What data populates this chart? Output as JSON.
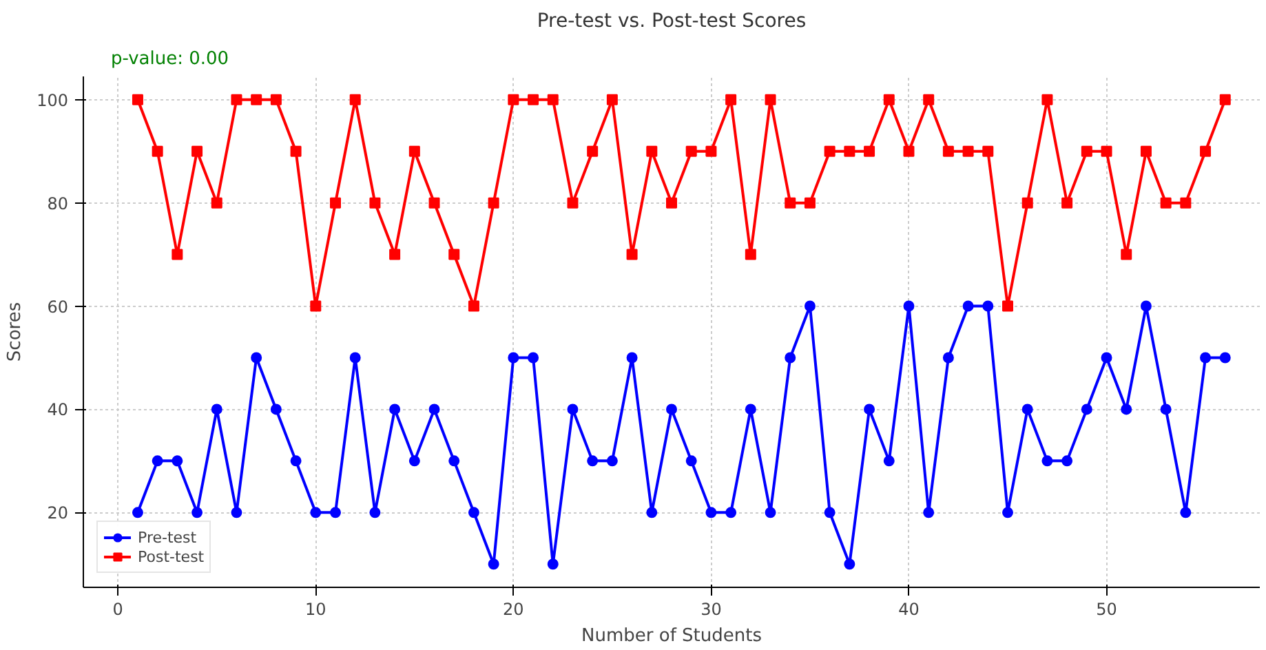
{
  "chart_data": {
    "type": "line",
    "title": "Pre-test vs. Post-test Scores",
    "xlabel": "Number of Students",
    "ylabel": "Scores",
    "annotations": [
      "p-value: 0.00"
    ],
    "x": [
      1,
      2,
      3,
      4,
      5,
      6,
      7,
      8,
      9,
      10,
      11,
      12,
      13,
      14,
      15,
      16,
      17,
      18,
      19,
      20,
      21,
      22,
      23,
      24,
      25,
      26,
      27,
      28,
      29,
      30,
      31,
      32,
      33,
      34,
      35,
      36,
      37,
      38,
      39,
      40,
      41,
      42,
      43,
      44,
      45,
      46,
      47,
      48,
      49,
      50,
      51,
      52,
      53,
      54,
      55,
      56
    ],
    "series": [
      {
        "name": "Pre-test",
        "color": "#0000ff",
        "marker": "circle",
        "values": [
          20,
          30,
          30,
          20,
          40,
          20,
          50,
          40,
          30,
          20,
          20,
          50,
          20,
          40,
          30,
          40,
          30,
          20,
          10,
          50,
          50,
          10,
          40,
          30,
          30,
          50,
          20,
          40,
          30,
          20,
          20,
          40,
          20,
          50,
          60,
          20,
          10,
          40,
          30,
          60,
          20,
          50,
          60,
          60,
          20,
          40,
          30,
          30,
          40,
          50,
          40,
          60,
          40,
          20,
          50,
          50
        ]
      },
      {
        "name": "Post-test",
        "color": "#ff0000",
        "marker": "square",
        "values": [
          100,
          90,
          70,
          90,
          80,
          100,
          100,
          100,
          90,
          60,
          80,
          100,
          80,
          70,
          90,
          80,
          70,
          60,
          80,
          100,
          100,
          100,
          80,
          90,
          100,
          70,
          90,
          80,
          90,
          90,
          100,
          70,
          100,
          80,
          80,
          90,
          90,
          90,
          100,
          90,
          100,
          90,
          90,
          90,
          60,
          80,
          100,
          80,
          90,
          90,
          70,
          90,
          80,
          80,
          90,
          100
        ]
      }
    ],
    "xlim": [
      -1.75,
      57.75
    ],
    "ylim": [
      5.5,
      104.5
    ],
    "xticks": [
      0,
      10,
      20,
      30,
      40,
      50
    ],
    "yticks": [
      20,
      40,
      60,
      80,
      100
    ],
    "grid": true,
    "legend": "bottom left",
    "line_style": "solid"
  }
}
